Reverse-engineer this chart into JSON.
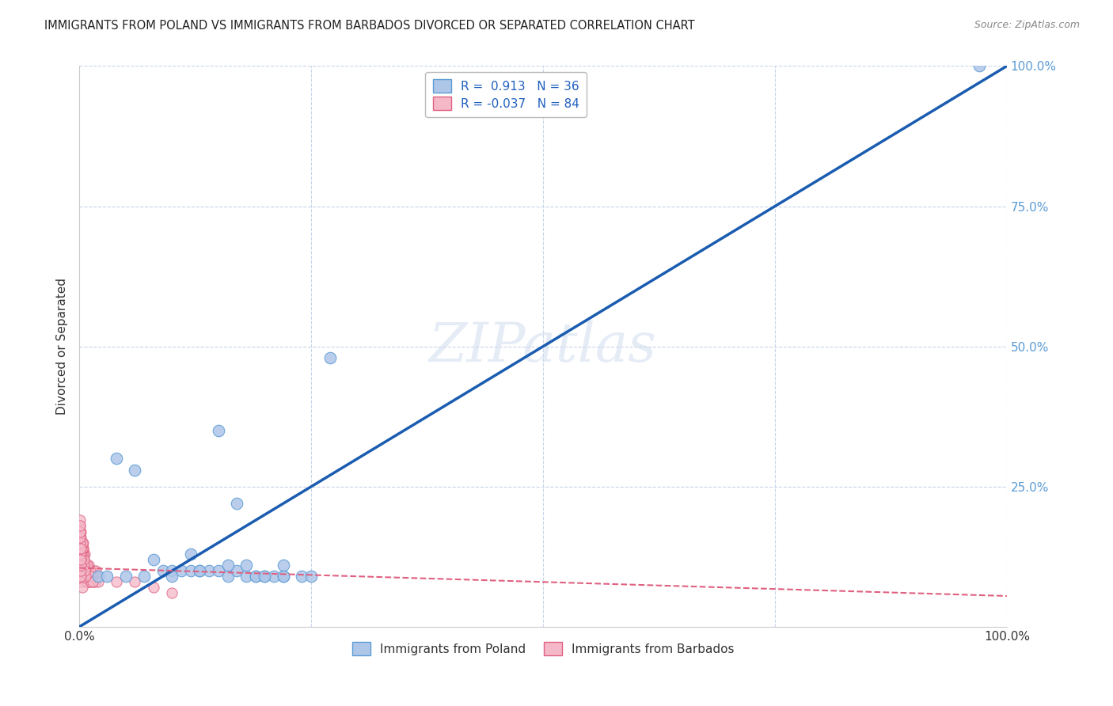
{
  "title": "IMMIGRANTS FROM POLAND VS IMMIGRANTS FROM BARBADOS DIVORCED OR SEPARATED CORRELATION CHART",
  "source": "Source: ZipAtlas.com",
  "ylabel": "Divorced or Separated",
  "xlim": [
    0,
    1
  ],
  "ylim": [
    0,
    1
  ],
  "poland_color": "#aec6e8",
  "poland_edge_color": "#5b9bd5",
  "barbados_color": "#f4b8c8",
  "barbados_edge_color": "#e06080",
  "poland_R": 0.913,
  "poland_N": 36,
  "barbados_R": -0.037,
  "barbados_N": 84,
  "poland_line_color": "#1a5cb0",
  "barbados_line_color": "#e06080",
  "watermark": "ZIPatlas",
  "background_color": "#ffffff",
  "grid_color": "#c8d4e8",
  "poland_x": [
    0.97,
    0.02,
    0.03,
    0.04,
    0.05,
    0.06,
    0.07,
    0.08,
    0.09,
    0.1,
    0.11,
    0.12,
    0.13,
    0.14,
    0.15,
    0.16,
    0.17,
    0.18,
    0.19,
    0.2,
    0.21,
    0.22,
    0.15,
    0.17,
    0.18,
    0.19,
    0.2,
    0.22,
    0.24,
    0.25,
    0.27,
    0.13,
    0.16,
    0.22,
    0.12,
    0.1
  ],
  "poland_y": [
    1.0,
    0.09,
    0.09,
    0.3,
    0.09,
    0.28,
    0.09,
    0.12,
    0.1,
    0.1,
    0.1,
    0.1,
    0.1,
    0.1,
    0.1,
    0.09,
    0.1,
    0.09,
    0.09,
    0.09,
    0.09,
    0.09,
    0.35,
    0.22,
    0.11,
    0.09,
    0.09,
    0.11,
    0.09,
    0.09,
    0.48,
    0.1,
    0.11,
    0.09,
    0.13,
    0.09
  ],
  "barbados_x": [
    0.002,
    0.003,
    0.004,
    0.005,
    0.006,
    0.007,
    0.008,
    0.009,
    0.01,
    0.011,
    0.012,
    0.013,
    0.014,
    0.015,
    0.016,
    0.017,
    0.018,
    0.019,
    0.02,
    0.002,
    0.003,
    0.004,
    0.005,
    0.006,
    0.007,
    0.008,
    0.009,
    0.01,
    0.011,
    0.012,
    0.013,
    0.014,
    0.001,
    0.002,
    0.003,
    0.004,
    0.005,
    0.006,
    0.007,
    0.008,
    0.001,
    0.002,
    0.003,
    0.004,
    0.005,
    0.006,
    0.001,
    0.002,
    0.003,
    0.004,
    0.005,
    0.001,
    0.002,
    0.003,
    0.004,
    0.001,
    0.002,
    0.003,
    0.001,
    0.002,
    0.001,
    0.002,
    0.001,
    0.04,
    0.06,
    0.08,
    0.1,
    0.001,
    0.002,
    0.003,
    0.001,
    0.002,
    0.001,
    0.001,
    0.002,
    0.001,
    0.002,
    0.001,
    0.002,
    0.001,
    0.001,
    0.002,
    0.001,
    0.001
  ],
  "barbados_y": [
    0.12,
    0.1,
    0.11,
    0.09,
    0.13,
    0.08,
    0.1,
    0.09,
    0.11,
    0.08,
    0.1,
    0.09,
    0.08,
    0.1,
    0.09,
    0.08,
    0.1,
    0.09,
    0.08,
    0.13,
    0.11,
    0.12,
    0.1,
    0.09,
    0.11,
    0.08,
    0.1,
    0.09,
    0.08,
    0.1,
    0.09,
    0.08,
    0.15,
    0.13,
    0.11,
    0.14,
    0.12,
    0.1,
    0.09,
    0.11,
    0.16,
    0.14,
    0.12,
    0.13,
    0.11,
    0.1,
    0.17,
    0.15,
    0.13,
    0.14,
    0.12,
    0.18,
    0.16,
    0.14,
    0.15,
    0.19,
    0.17,
    0.15,
    0.14,
    0.12,
    0.11,
    0.13,
    0.1,
    0.08,
    0.08,
    0.07,
    0.06,
    0.09,
    0.08,
    0.07,
    0.1,
    0.09,
    0.11,
    0.12,
    0.1,
    0.13,
    0.11,
    0.14,
    0.12,
    0.15,
    0.16,
    0.14,
    0.17,
    0.18
  ]
}
